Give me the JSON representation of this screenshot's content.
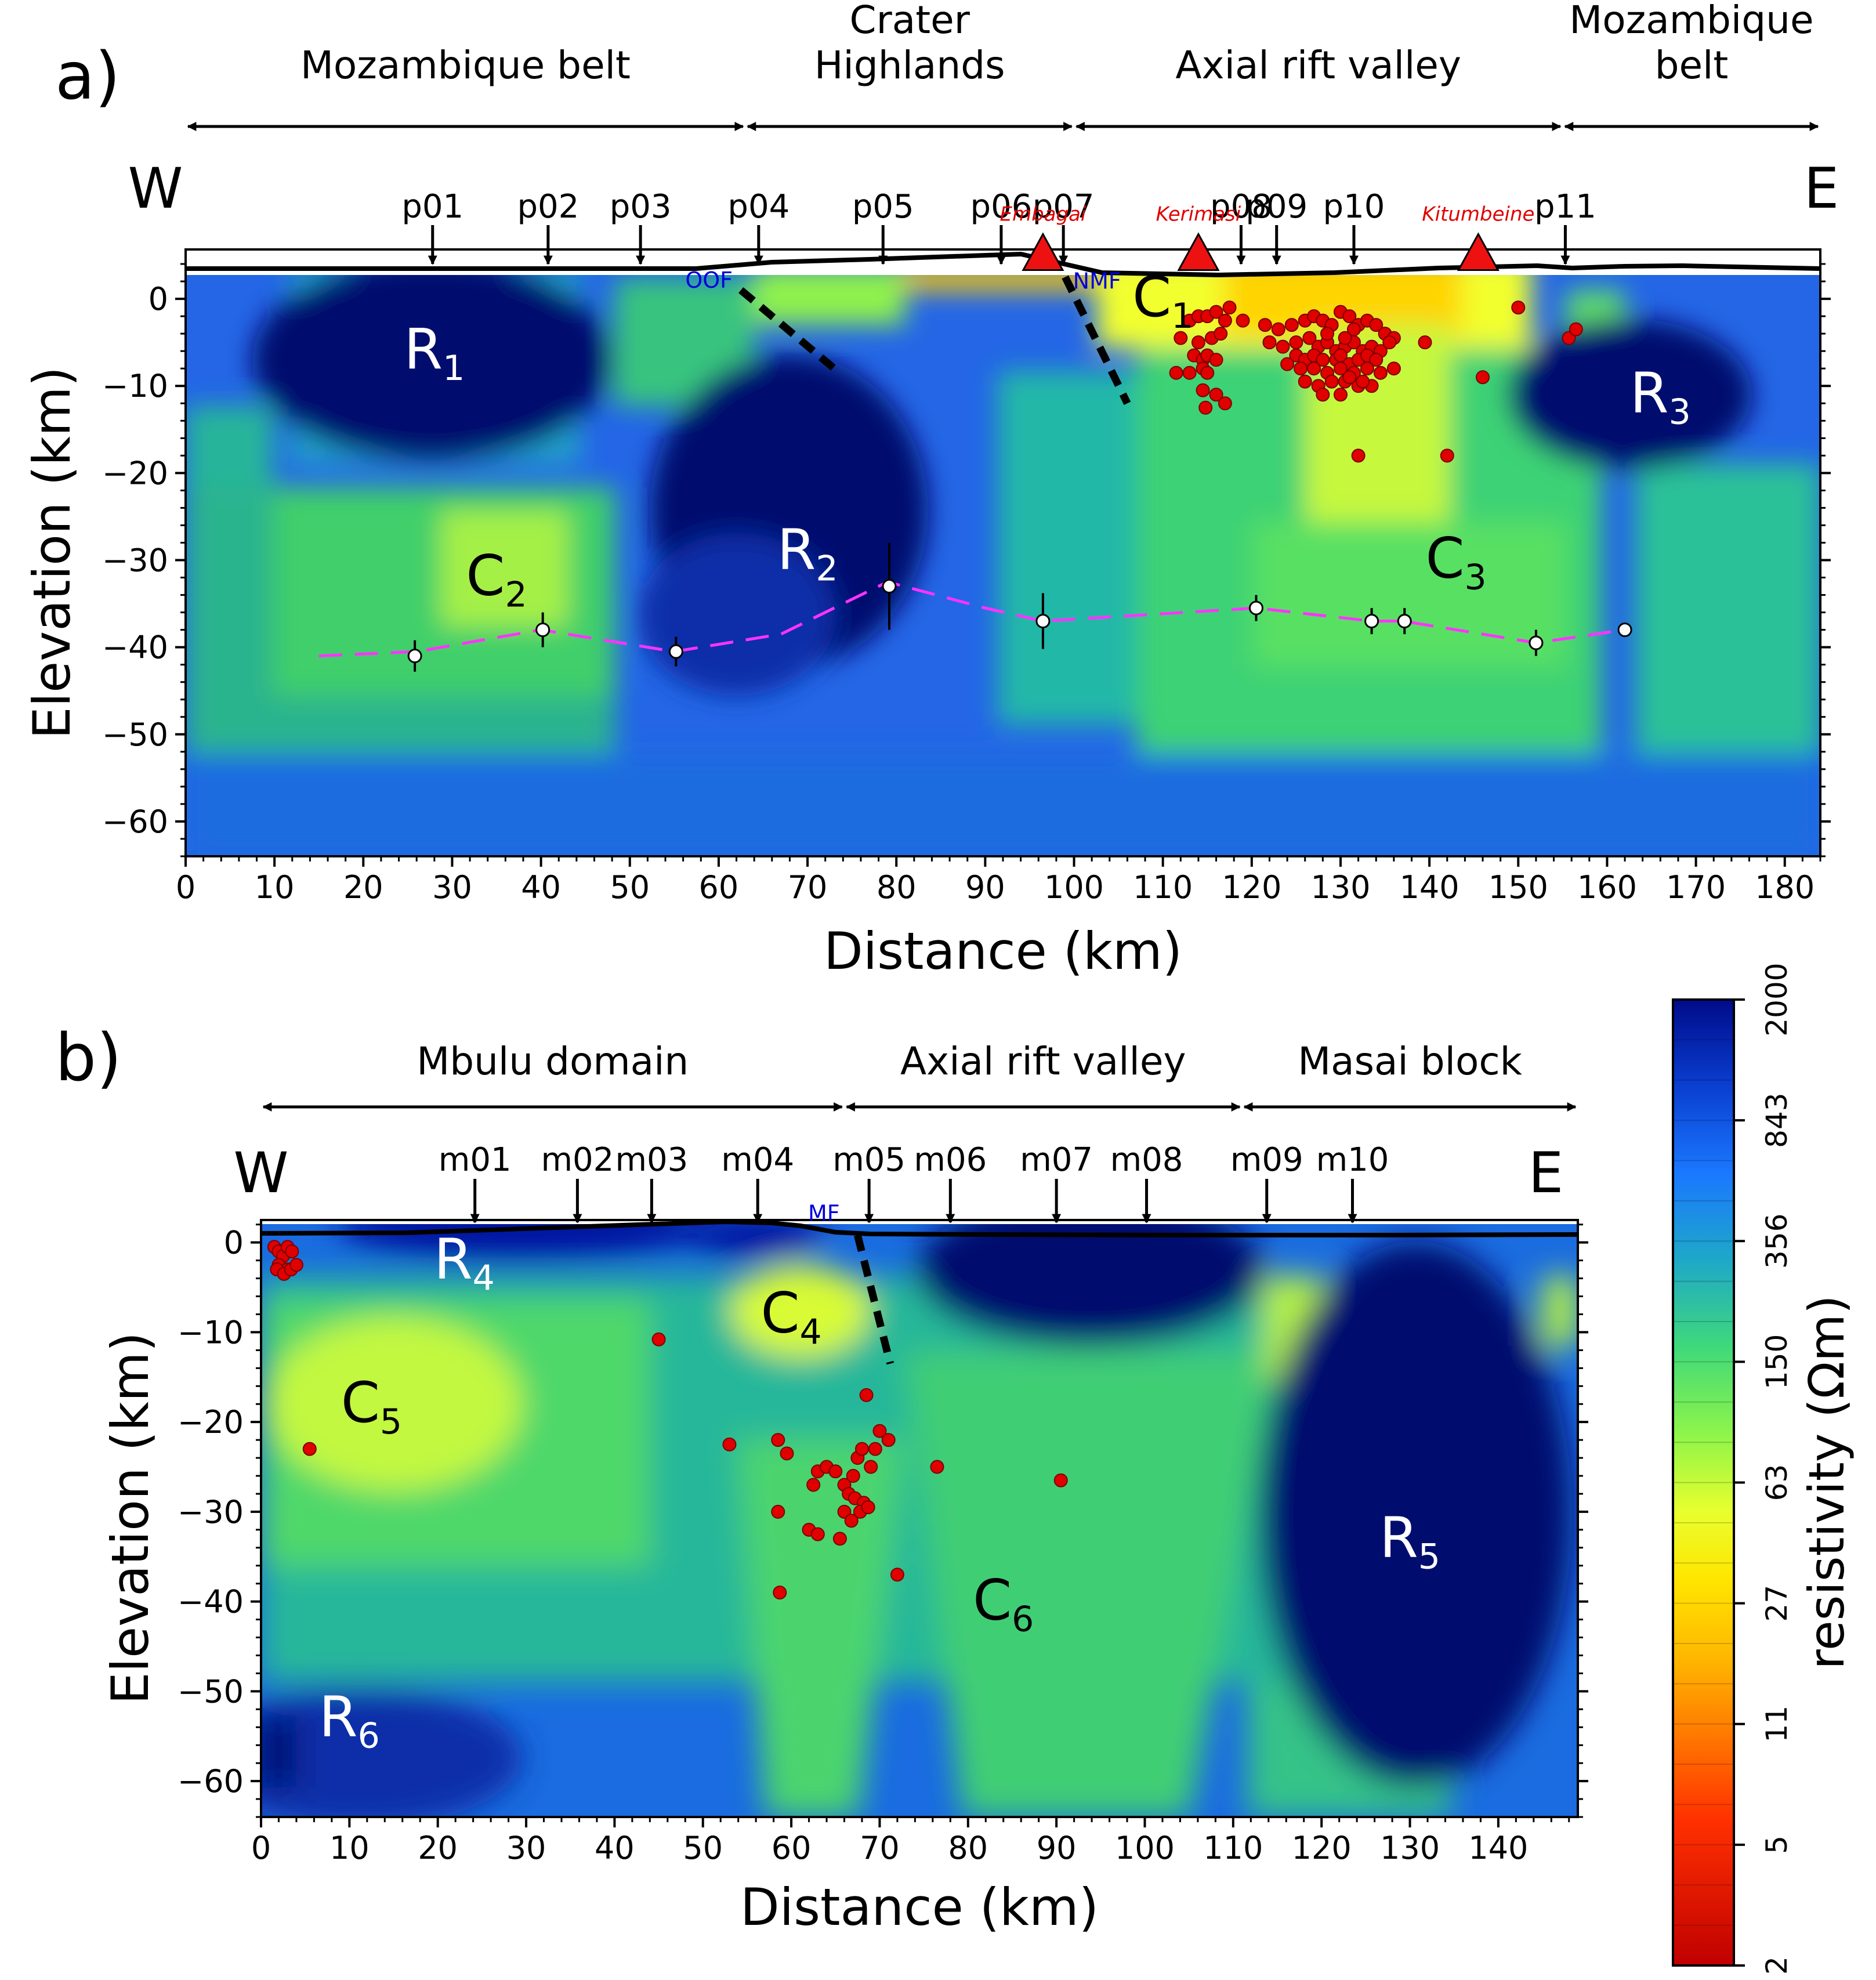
{
  "figure": {
    "panels": [
      "a)",
      "b)"
    ],
    "colorbar": {
      "label": "resistivity (Ωm)",
      "ticks": [
        "2000",
        "843",
        "356",
        "150",
        "63",
        "27",
        "11",
        "5",
        "2"
      ]
    }
  },
  "chart_data": [
    {
      "panel": "a)",
      "type": "heatmap",
      "title": "",
      "xlabel": "Distance (km)",
      "ylabel": "Elevation (km)",
      "xlim": [
        0,
        184
      ],
      "ylim": [
        -64,
        5
      ],
      "xticks": [
        0,
        10,
        20,
        30,
        40,
        50,
        60,
        70,
        80,
        90,
        100,
        110,
        120,
        130,
        140,
        150,
        160,
        170,
        180
      ],
      "yticks": [
        0,
        -10,
        -20,
        -30,
        -40,
        -50,
        -60
      ],
      "direction_labels": {
        "west": "W",
        "east": "E"
      },
      "domains": [
        {
          "label_lines": [
            "Mozambique belt"
          ],
          "x_start": 0,
          "x_end": 63
        },
        {
          "label_lines": [
            "Crater",
            "Highlands"
          ],
          "x_start": 63,
          "x_end": 100
        },
        {
          "label_lines": [
            "Axial rift valley"
          ],
          "x_start": 100,
          "x_end": 155
        },
        {
          "label_lines": [
            "Mozambique",
            "belt"
          ],
          "x_start": 155,
          "x_end": 184
        }
      ],
      "stations": [
        {
          "name": "p01",
          "x": 27.8
        },
        {
          "name": "p02",
          "x": 40.8
        },
        {
          "name": "p03",
          "x": 51.2
        },
        {
          "name": "p04",
          "x": 64.5
        },
        {
          "name": "p05",
          "x": 78.5
        },
        {
          "name": "p06",
          "x": 91.8
        },
        {
          "name": "p07",
          "x": 98.8
        },
        {
          "name": "p08",
          "x": 118.8
        },
        {
          "name": "p09",
          "x": 122.8
        },
        {
          "name": "p10",
          "x": 131.5
        },
        {
          "name": "p11",
          "x": 155.3
        }
      ],
      "volcanoes": [
        {
          "name": "Embagai",
          "x": 96.5
        },
        {
          "name": "Kerimasi",
          "x": 114
        },
        {
          "name": "Kitumbeine",
          "x": 145.5
        }
      ],
      "faults": [
        {
          "name": "OOF",
          "x0": 62.5,
          "y0": 1,
          "x1": 73,
          "y1": -8
        },
        {
          "name": "NMF",
          "x0": 99,
          "y0": 2.5,
          "x1": 106,
          "y1": -12
        }
      ],
      "features": [
        {
          "label": "R",
          "sub": "1",
          "x": 28,
          "y": -8,
          "white": true
        },
        {
          "label": "R",
          "sub": "2",
          "x": 70,
          "y": -31,
          "white": true
        },
        {
          "label": "R",
          "sub": "3",
          "x": 166,
          "y": -13,
          "white": true
        },
        {
          "label": "C",
          "sub": "1",
          "x": 110,
          "y": -2,
          "white": false
        },
        {
          "label": "C",
          "sub": "2",
          "x": 35,
          "y": -34,
          "white": false
        },
        {
          "label": "C",
          "sub": "3",
          "x": 143,
          "y": -32,
          "white": false
        }
      ],
      "moho_line": {
        "x": [
          15,
          26,
          40,
          55,
          67,
          79,
          90,
          96.5,
          120.5,
          133.5,
          137,
          152,
          162
        ],
        "y": [
          -41,
          -40.5,
          -38,
          -40.5,
          -38.5,
          -32.5,
          -35.5,
          -37,
          -35.5,
          -37,
          -37,
          -39.5,
          -38
        ]
      },
      "moho_points": [
        {
          "x": 25.8,
          "y": -41,
          "err": 1.8
        },
        {
          "x": 40.2,
          "y": -38,
          "err": 2
        },
        {
          "x": 55.2,
          "y": -40.5,
          "err": 1.7
        },
        {
          "x": 79.2,
          "y": -33,
          "err": 5
        },
        {
          "x": 96.5,
          "y": -37,
          "err": 3.2
        },
        {
          "x": 120.5,
          "y": -35.5,
          "err": 1.5
        },
        {
          "x": 133.5,
          "y": -37,
          "err": 1.5
        },
        {
          "x": 137.2,
          "y": -37,
          "err": 1.5
        },
        {
          "x": 152,
          "y": -39.5,
          "err": 1.5
        },
        {
          "x": 162,
          "y": -38,
          "err": 0.3
        }
      ],
      "earthquakes": {
        "x": [
          111.5,
          113,
          114,
          115,
          116,
          117,
          117.5,
          112,
          114,
          115.5,
          116.5,
          113.5,
          114.5,
          115,
          116,
          113,
          114.5,
          115,
          114.5,
          114.8,
          116,
          117,
          119,
          121.5,
          123,
          124.5,
          126,
          127,
          128,
          129,
          130,
          131,
          132,
          133,
          134,
          135,
          136,
          122,
          123.5,
          125,
          126.5,
          127.5,
          128.5,
          129.5,
          130.5,
          131.5,
          132.5,
          133.5,
          134.5,
          135.5,
          125,
          126,
          127,
          128,
          129.5,
          130,
          131,
          132,
          133,
          134,
          124,
          125.5,
          127,
          128.5,
          130,
          131.5,
          133,
          134.5,
          136,
          126,
          127.5,
          129,
          130.5,
          132,
          133.5,
          128,
          130,
          131,
          132.5,
          128.5,
          130.5,
          131.5,
          139.5,
          132,
          142,
          146,
          150,
          155.7,
          156.5
        ],
        "y": [
          -8.5,
          -2.5,
          -2,
          -2,
          -1.5,
          -2.5,
          -1,
          -4.5,
          -5,
          -4.5,
          -4,
          -6.5,
          -7,
          -6.5,
          -7,
          -8.5,
          -8,
          -8.5,
          -10.5,
          -12.5,
          -11,
          -12,
          -2.5,
          -3,
          -3.5,
          -3,
          -2.5,
          -2,
          -2.5,
          -3,
          -1.5,
          -2,
          -3,
          -2.5,
          -3,
          -4,
          -4.5,
          -5,
          -5.5,
          -5,
          -4.5,
          -5.5,
          -5,
          -6,
          -5.5,
          -5,
          -6,
          -5.5,
          -6,
          -5,
          -6.5,
          -7,
          -6.5,
          -7,
          -7,
          -6.5,
          -7.5,
          -7,
          -6.5,
          -7,
          -7.5,
          -8,
          -8,
          -8.5,
          -8,
          -8.5,
          -8,
          -8.5,
          -8,
          -9.5,
          -10,
          -9.5,
          -9.5,
          -10,
          -10,
          -11,
          -11,
          -9,
          -9.5,
          -4,
          -4.5,
          -3.5,
          -5,
          -18,
          -18,
          -9,
          -1,
          -4.5,
          -3.5
        ]
      }
    },
    {
      "panel": "b)",
      "type": "heatmap",
      "title": "",
      "xlabel": "Distance (km)",
      "ylabel": "Elevation (km)",
      "xlim": [
        0,
        149
      ],
      "ylim": [
        -64,
        2.5
      ],
      "xticks": [
        0,
        10,
        20,
        30,
        40,
        50,
        60,
        70,
        80,
        90,
        100,
        110,
        120,
        130,
        140
      ],
      "yticks": [
        0,
        -10,
        -20,
        -30,
        -40,
        -50,
        -60
      ],
      "direction_labels": {
        "west": "W",
        "east": "E"
      },
      "domains": [
        {
          "label_lines": [
            "Mbulu domain"
          ],
          "x_start": 0,
          "x_end": 66
        },
        {
          "label_lines": [
            "Axial rift valley"
          ],
          "x_start": 66,
          "x_end": 111
        },
        {
          "label_lines": [
            "Masai block"
          ],
          "x_start": 111,
          "x_end": 149
        }
      ],
      "stations": [
        {
          "name": "m01",
          "x": 24.2
        },
        {
          "name": "m02",
          "x": 35.8
        },
        {
          "name": "m03",
          "x": 44.2
        },
        {
          "name": "m04",
          "x": 56.2
        },
        {
          "name": "m05",
          "x": 68.8
        },
        {
          "name": "m06",
          "x": 78
        },
        {
          "name": "m07",
          "x": 90
        },
        {
          "name": "m08",
          "x": 100.2
        },
        {
          "name": "m09",
          "x": 113.8
        },
        {
          "name": "m10",
          "x": 123.5
        }
      ],
      "faults": [
        {
          "name": "MF",
          "x0": 67.5,
          "y0": 0.8,
          "x1": 71.2,
          "y1": -13.5
        }
      ],
      "features": [
        {
          "label": "R",
          "sub": "4",
          "x": 23,
          "y": -4,
          "white": true
        },
        {
          "label": "R",
          "sub": "5",
          "x": 130,
          "y": -35,
          "white": true
        },
        {
          "label": "R",
          "sub": "6",
          "x": 10,
          "y": -55,
          "white": true
        },
        {
          "label": "C",
          "sub": "4",
          "x": 60,
          "y": -10,
          "white": false
        },
        {
          "label": "C",
          "sub": "5",
          "x": 12.5,
          "y": -20,
          "white": false
        },
        {
          "label": "C",
          "sub": "6",
          "x": 84,
          "y": -42,
          "white": false
        }
      ],
      "earthquakes": {
        "x": [
          1.5,
          2,
          2.5,
          3,
          3.5,
          2,
          3,
          1.8,
          2.6,
          3.4,
          4,
          5.5,
          45,
          53,
          58.5,
          59.5,
          62,
          62.5,
          63,
          64,
          65,
          66,
          67,
          67.5,
          68,
          68.5,
          69,
          69.5,
          70,
          71,
          66.5,
          67.2,
          68.2,
          66,
          67.8,
          68.7,
          66.8,
          72,
          76.5,
          90.5,
          58.5,
          63,
          65.5,
          58.7
        ],
        "y": [
          -0.5,
          -1,
          -1.5,
          -0.5,
          -1,
          -2.5,
          -3,
          -3,
          -3.5,
          -3,
          -2.5,
          -23,
          -10.8,
          -22.5,
          -22,
          -23.5,
          -32,
          -27,
          -25.5,
          -25,
          -25.5,
          -27,
          -26,
          -24,
          -23,
          -17,
          -25,
          -23,
          -21,
          -22,
          -28,
          -28.5,
          -29,
          -30,
          -30,
          -29.5,
          -31,
          -37,
          -25,
          -26.5,
          -30,
          -32.5,
          -33,
          -39
        ]
      }
    }
  ]
}
